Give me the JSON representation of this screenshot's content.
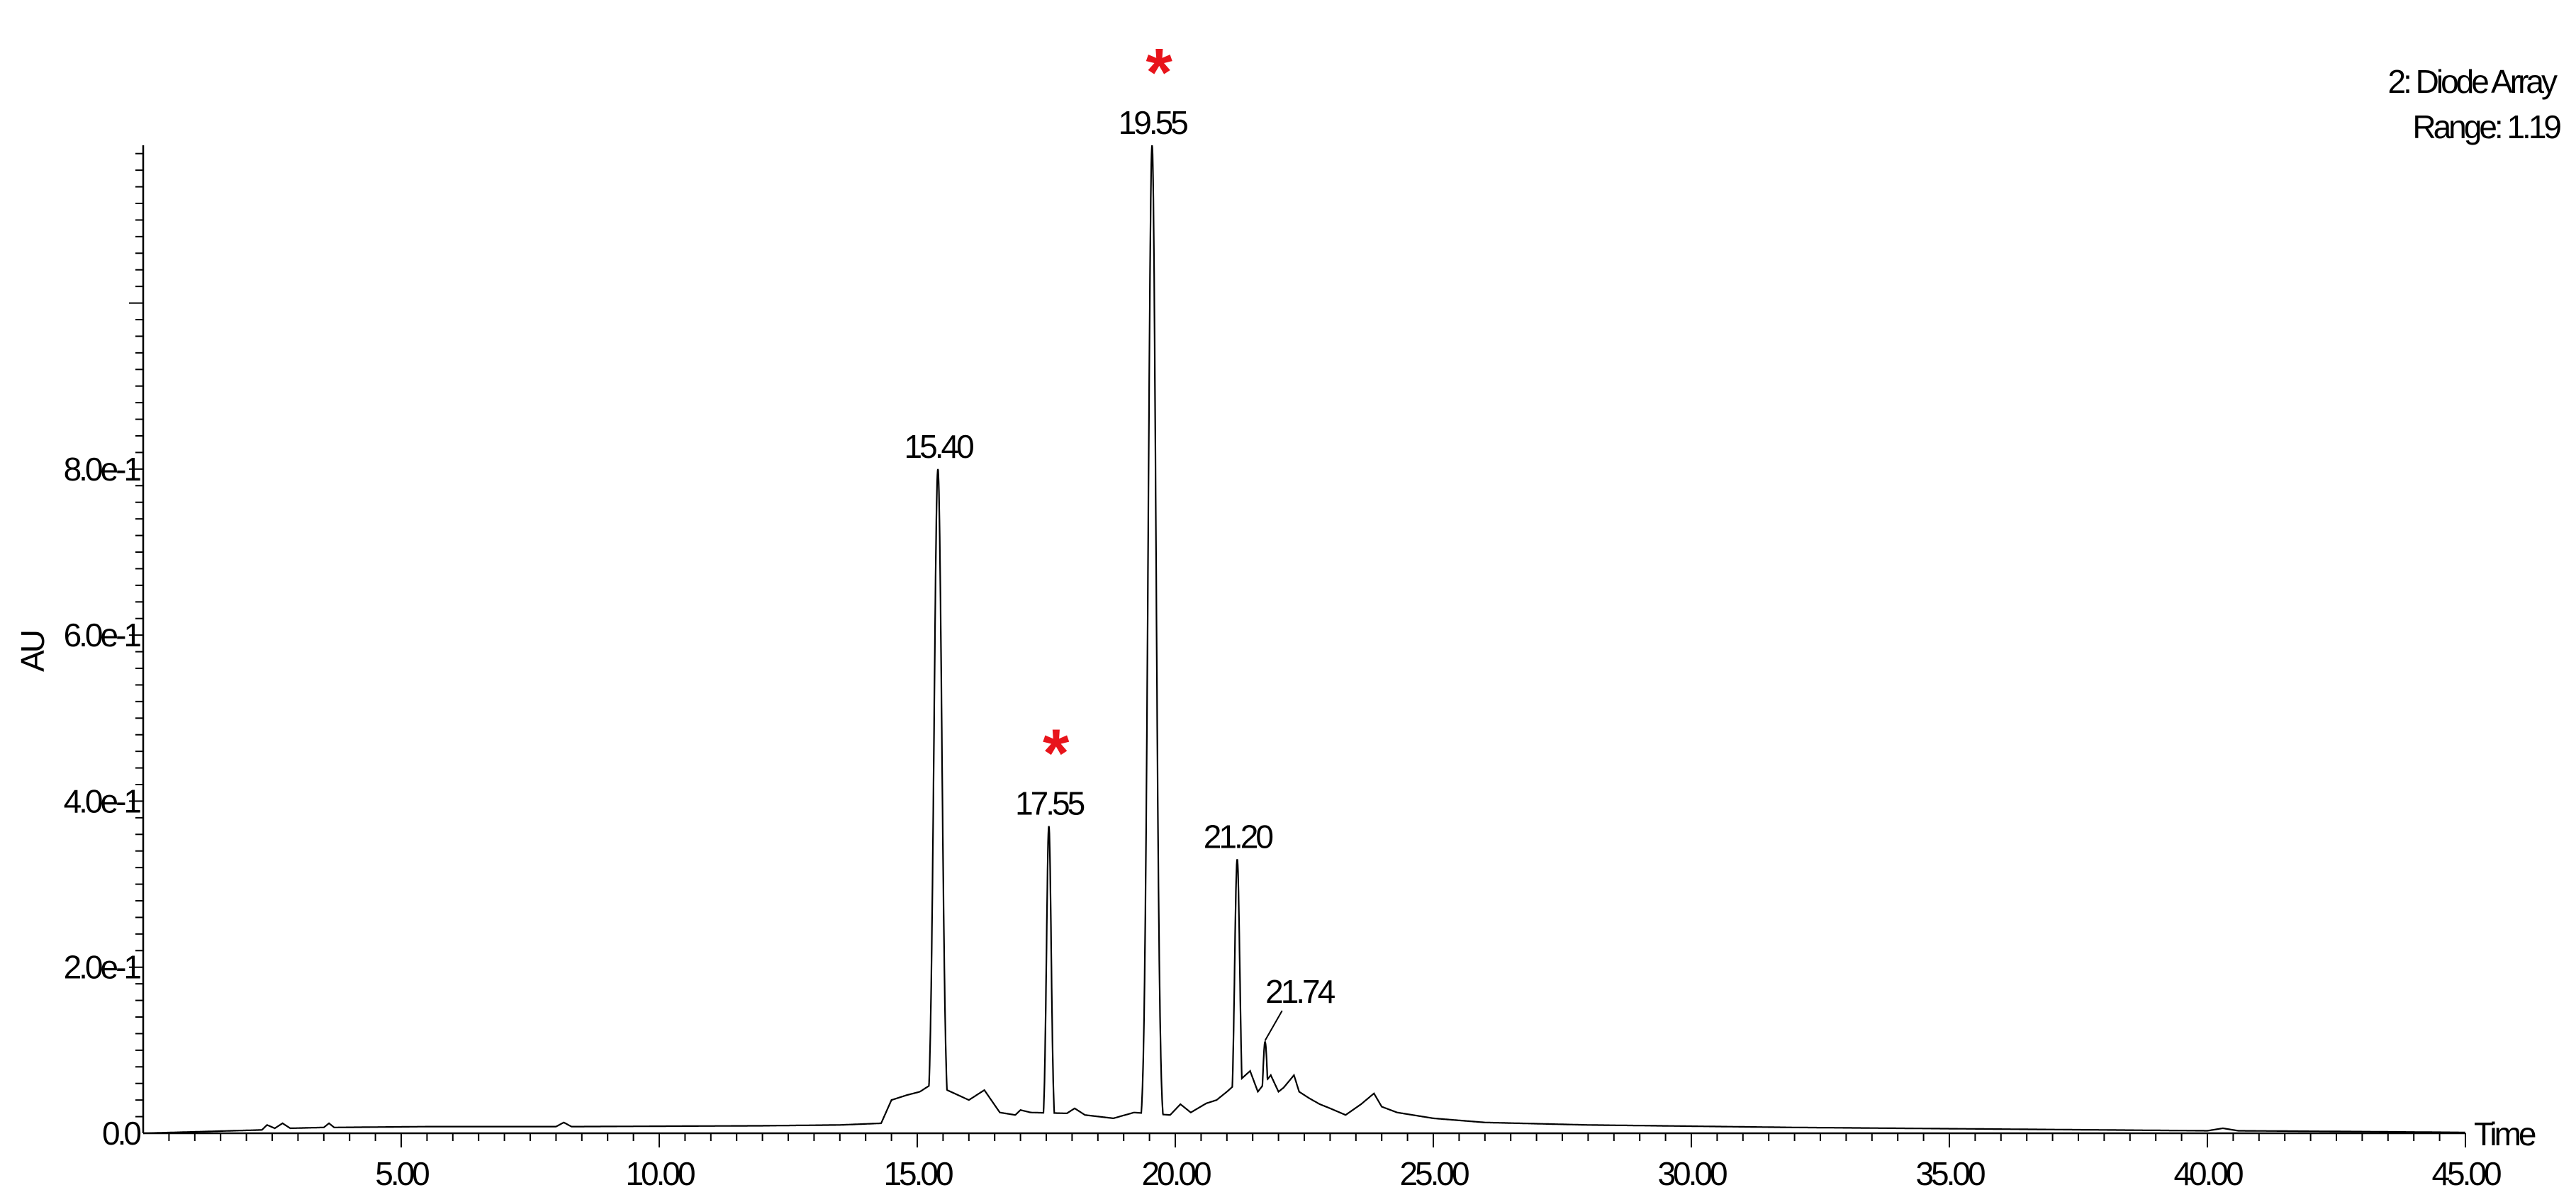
{
  "chart_data": {
    "type": "line",
    "title": "",
    "detector": "2: Diode Array",
    "range_label": "Range: 1.19",
    "xlabel": "Time",
    "ylabel": "AU",
    "xlim": [
      0,
      45
    ],
    "ylim": [
      0,
      1.19
    ],
    "x_ticks": [
      5,
      10,
      15,
      20,
      25,
      30,
      35,
      40,
      45
    ],
    "x_tick_labels": [
      "5.00",
      "10.00",
      "15.00",
      "20.00",
      "25.00",
      "30.00",
      "35.00",
      "40.00",
      "45.00"
    ],
    "y_ticks": [
      0,
      0.2,
      0.4,
      0.6,
      0.8
    ],
    "y_tick_labels": [
      "0.0",
      "2.0e-1",
      "4.0e-1",
      "6.0e-1",
      "8.0e-1"
    ],
    "grid": false,
    "baseline": [
      [
        0.0,
        0.0
      ],
      [
        2.3,
        0.004
      ],
      [
        2.4,
        0.01
      ],
      [
        2.55,
        0.006
      ],
      [
        2.7,
        0.012
      ],
      [
        2.85,
        0.006
      ],
      [
        3.5,
        0.007
      ],
      [
        3.6,
        0.012
      ],
      [
        3.7,
        0.007
      ],
      [
        5.5,
        0.008
      ],
      [
        8.0,
        0.008
      ],
      [
        8.15,
        0.013
      ],
      [
        8.3,
        0.008
      ],
      [
        12.0,
        0.009
      ],
      [
        13.5,
        0.01
      ],
      [
        14.3,
        0.012
      ],
      [
        14.5,
        0.04
      ],
      [
        14.8,
        0.046
      ],
      [
        15.05,
        0.05
      ],
      [
        15.3,
        0.06
      ],
      [
        16.0,
        0.04
      ],
      [
        16.3,
        0.052
      ],
      [
        16.6,
        0.025
      ],
      [
        16.9,
        0.022
      ],
      [
        17.0,
        0.028
      ],
      [
        17.2,
        0.025
      ],
      [
        17.9,
        0.024
      ],
      [
        18.05,
        0.03
      ],
      [
        18.25,
        0.022
      ],
      [
        18.8,
        0.018
      ],
      [
        19.2,
        0.025
      ],
      [
        19.9,
        0.022
      ],
      [
        20.1,
        0.035
      ],
      [
        20.3,
        0.025
      ],
      [
        20.6,
        0.036
      ],
      [
        20.8,
        0.04
      ],
      [
        21.0,
        0.05
      ],
      [
        21.45,
        0.075
      ],
      [
        21.6,
        0.05
      ],
      [
        21.85,
        0.07
      ],
      [
        22.0,
        0.05
      ],
      [
        22.1,
        0.055
      ],
      [
        22.3,
        0.07
      ],
      [
        22.4,
        0.05
      ],
      [
        22.6,
        0.042
      ],
      [
        22.8,
        0.035
      ],
      [
        23.0,
        0.03
      ],
      [
        23.3,
        0.022
      ],
      [
        23.6,
        0.035
      ],
      [
        23.85,
        0.048
      ],
      [
        24.0,
        0.032
      ],
      [
        24.3,
        0.025
      ],
      [
        25.0,
        0.018
      ],
      [
        26.0,
        0.013
      ],
      [
        28.0,
        0.01
      ],
      [
        32.0,
        0.007
      ],
      [
        36.0,
        0.005
      ],
      [
        40.0,
        0.003
      ],
      [
        40.3,
        0.006
      ],
      [
        40.6,
        0.003
      ],
      [
        43.0,
        0.002
      ],
      [
        45.0,
        0.001
      ]
    ],
    "peaks": [
      {
        "x": 15.4,
        "y": 0.8,
        "w": 0.075,
        "label": "15.40"
      },
      {
        "x": 17.55,
        "y": 0.37,
        "w": 0.045,
        "label": "17.55"
      },
      {
        "x": 19.55,
        "y": 1.19,
        "w": 0.075,
        "label": "19.55"
      },
      {
        "x": 21.2,
        "y": 0.33,
        "w": 0.05,
        "label": "21.20"
      },
      {
        "x": 21.74,
        "y": 0.11,
        "w": 0.045,
        "label": "21.74"
      }
    ],
    "markers": [
      {
        "symbol": "*",
        "peak": "17.55",
        "color": "#e8141b"
      },
      {
        "symbol": "*",
        "peak": "19.55",
        "color": "#e8141b"
      }
    ]
  }
}
